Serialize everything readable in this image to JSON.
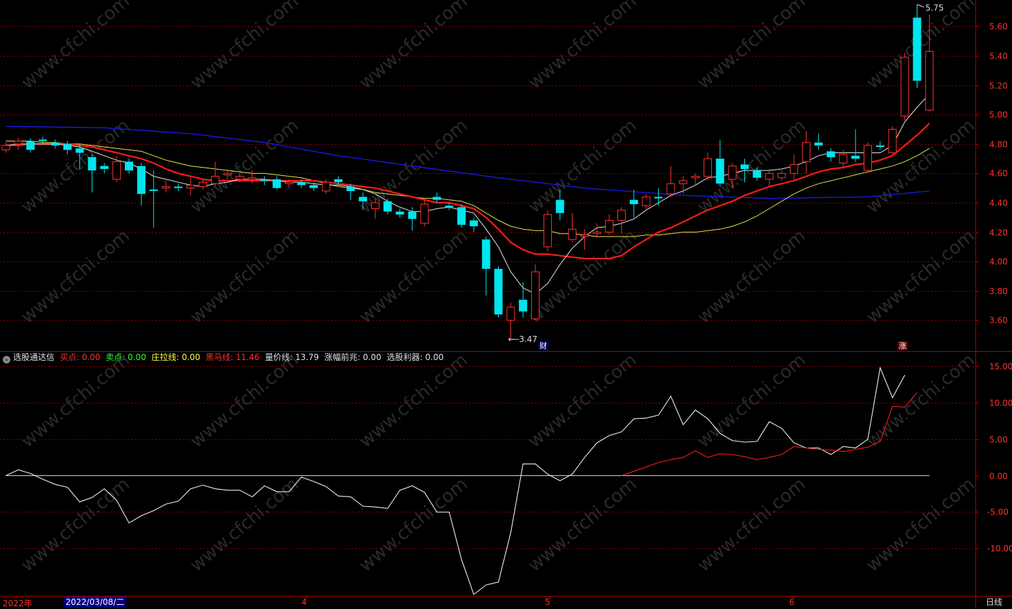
{
  "price_axis": {
    "labels": [
      "5.60",
      "5.40",
      "5.20",
      "5.00",
      "4.80",
      "4.60",
      "4.40",
      "4.20",
      "4.00",
      "3.80",
      "3.60"
    ],
    "values": [
      5.6,
      5.4,
      5.2,
      5.0,
      4.8,
      4.6,
      4.4,
      4.2,
      4.0,
      3.8,
      3.6
    ]
  },
  "indicator_axis": {
    "labels": [
      "15.00",
      "10.00",
      "5.00",
      "0.00",
      "-5.00",
      "-10.00"
    ],
    "values": [
      15,
      10,
      5,
      0,
      -5,
      -10
    ]
  },
  "annotations": {
    "high_label": "5.75",
    "low_label": "3.47",
    "tag_cai": "财",
    "tag_zhang": "涨"
  },
  "legend": {
    "name": "选股通达信",
    "items": [
      {
        "label": "买点: 0.00",
        "color": "#ff3030"
      },
      {
        "label": "卖点: 0.00",
        "color": "#30ff30"
      },
      {
        "label": "庄拉线: 0.00",
        "color": "#ffff40"
      },
      {
        "label": "黑马线: 11.46",
        "color": "#ff3030"
      },
      {
        "label": "量价线: 13.79",
        "color": "#e0e0e0"
      },
      {
        "label": "涨幅前兆: 0.00",
        "color": "#e0e0e0"
      },
      {
        "label": "选股利器: 0.00",
        "color": "#e0e0e0"
      }
    ]
  },
  "bottom_bar": {
    "year_label": "2022年",
    "selected_date": "2022/03/08/二",
    "month_4": "4",
    "month_5": "5",
    "month_6": "6",
    "period": "日线"
  },
  "watermark": "www.cfchi.com",
  "colors": {
    "up": "#ff3232",
    "down": "#00e5ee",
    "ma_white": "#e8e8e8",
    "ma_red": "#ff1a1a",
    "ma_yellow": "#e6e650",
    "ma_blue": "#1a1aee",
    "grid": "#8b0000",
    "axis_text": "#ff3232"
  },
  "chart_data": {
    "type": "candlestick",
    "ylim_price": [
      3.4,
      5.78
    ],
    "ylim_indicator": [
      -16.5,
      17
    ],
    "candles": [
      {
        "o": 4.76,
        "c": 4.79,
        "h": 4.81,
        "l": 4.74
      },
      {
        "o": 4.8,
        "c": 4.82,
        "h": 4.84,
        "l": 4.76
      },
      {
        "o": 4.82,
        "c": 4.76,
        "h": 4.84,
        "l": 4.74
      },
      {
        "o": 4.83,
        "c": 4.82,
        "h": 4.85,
        "l": 4.8
      },
      {
        "o": 4.81,
        "c": 4.79,
        "h": 4.83,
        "l": 4.77
      },
      {
        "o": 4.8,
        "c": 4.76,
        "h": 4.82,
        "l": 4.73
      },
      {
        "o": 4.77,
        "c": 4.74,
        "h": 4.8,
        "l": 4.63
      },
      {
        "o": 4.71,
        "c": 4.62,
        "h": 4.73,
        "l": 4.47
      },
      {
        "o": 4.65,
        "c": 4.63,
        "h": 4.67,
        "l": 4.6
      },
      {
        "o": 4.56,
        "c": 4.68,
        "h": 4.72,
        "l": 4.54
      },
      {
        "o": 4.68,
        "c": 4.62,
        "h": 4.7,
        "l": 4.6
      },
      {
        "o": 4.65,
        "c": 4.46,
        "h": 4.67,
        "l": 4.38
      },
      {
        "o": 4.49,
        "c": 4.48,
        "h": 4.62,
        "l": 4.23
      },
      {
        "o": 4.5,
        "c": 4.51,
        "h": 4.55,
        "l": 4.47
      },
      {
        "o": 4.51,
        "c": 4.5,
        "h": 4.53,
        "l": 4.48
      },
      {
        "o": 4.5,
        "c": 4.52,
        "h": 4.57,
        "l": 4.45
      },
      {
        "o": 4.51,
        "c": 4.54,
        "h": 4.56,
        "l": 4.49
      },
      {
        "o": 4.53,
        "c": 4.58,
        "h": 4.68,
        "l": 4.51
      },
      {
        "o": 4.59,
        "c": 4.6,
        "h": 4.63,
        "l": 4.56
      },
      {
        "o": 4.56,
        "c": 4.58,
        "h": 4.6,
        "l": 4.54
      },
      {
        "o": 4.56,
        "c": 4.57,
        "h": 4.62,
        "l": 4.53
      },
      {
        "o": 4.56,
        "c": 4.55,
        "h": 4.58,
        "l": 4.52
      },
      {
        "o": 4.56,
        "c": 4.5,
        "h": 4.58,
        "l": 4.49
      },
      {
        "o": 4.53,
        "c": 4.54,
        "h": 4.56,
        "l": 4.5
      },
      {
        "o": 4.54,
        "c": 4.52,
        "h": 4.56,
        "l": 4.5
      },
      {
        "o": 4.52,
        "c": 4.5,
        "h": 4.54,
        "l": 4.48
      },
      {
        "o": 4.48,
        "c": 4.54,
        "h": 4.56,
        "l": 4.46
      },
      {
        "o": 4.56,
        "c": 4.54,
        "h": 4.58,
        "l": 4.52
      },
      {
        "o": 4.51,
        "c": 4.48,
        "h": 4.53,
        "l": 4.42
      },
      {
        "o": 4.44,
        "c": 4.41,
        "h": 4.47,
        "l": 4.35
      },
      {
        "o": 4.36,
        "c": 4.4,
        "h": 4.43,
        "l": 4.29
      },
      {
        "o": 4.41,
        "c": 4.34,
        "h": 4.43,
        "l": 4.32
      },
      {
        "o": 4.34,
        "c": 4.32,
        "h": 4.36,
        "l": 4.3
      },
      {
        "o": 4.34,
        "c": 4.29,
        "h": 4.37,
        "l": 4.21
      },
      {
        "o": 4.26,
        "c": 4.39,
        "h": 4.42,
        "l": 4.24
      },
      {
        "o": 4.44,
        "c": 4.42,
        "h": 4.47,
        "l": 4.4
      },
      {
        "o": 4.38,
        "c": 4.37,
        "h": 4.4,
        "l": 4.35
      },
      {
        "o": 4.37,
        "c": 4.25,
        "h": 4.39,
        "l": 4.23
      },
      {
        "o": 4.28,
        "c": 4.24,
        "h": 4.3,
        "l": 4.2
      },
      {
        "o": 4.15,
        "c": 3.95,
        "h": 4.17,
        "l": 3.77
      },
      {
        "o": 3.95,
        "c": 3.64,
        "h": 3.97,
        "l": 3.62
      },
      {
        "o": 3.6,
        "c": 3.69,
        "h": 3.72,
        "l": 3.47
      },
      {
        "o": 3.74,
        "c": 3.66,
        "h": 3.86,
        "l": 3.62
      },
      {
        "o": 3.61,
        "c": 3.93,
        "h": 3.98,
        "l": 3.6
      },
      {
        "o": 4.1,
        "c": 4.32,
        "h": 4.35,
        "l": 4.07
      },
      {
        "o": 4.42,
        "c": 4.33,
        "h": 4.49,
        "l": 4.28
      },
      {
        "o": 4.15,
        "c": 4.22,
        "h": 4.33,
        "l": 4.13
      },
      {
        "o": 4.17,
        "c": 4.18,
        "h": 4.22,
        "l": 4.08
      },
      {
        "o": 4.19,
        "c": 4.2,
        "h": 4.26,
        "l": 4.16
      },
      {
        "o": 4.2,
        "c": 4.28,
        "h": 4.32,
        "l": 4.18
      },
      {
        "o": 4.28,
        "c": 4.35,
        "h": 4.37,
        "l": 4.19
      },
      {
        "o": 4.42,
        "c": 4.39,
        "h": 4.49,
        "l": 4.3
      },
      {
        "o": 4.38,
        "c": 4.44,
        "h": 4.46,
        "l": 4.35
      },
      {
        "o": 4.44,
        "c": 4.43,
        "h": 4.5,
        "l": 4.38
      },
      {
        "o": 4.46,
        "c": 4.53,
        "h": 4.65,
        "l": 4.44
      },
      {
        "o": 4.53,
        "c": 4.55,
        "h": 4.58,
        "l": 4.46
      },
      {
        "o": 4.57,
        "c": 4.58,
        "h": 4.6,
        "l": 4.52
      },
      {
        "o": 4.58,
        "c": 4.7,
        "h": 4.74,
        "l": 4.55
      },
      {
        "o": 4.7,
        "c": 4.53,
        "h": 4.83,
        "l": 4.51
      },
      {
        "o": 4.56,
        "c": 4.65,
        "h": 4.67,
        "l": 4.5
      },
      {
        "o": 4.66,
        "c": 4.63,
        "h": 4.7,
        "l": 4.54
      },
      {
        "o": 4.62,
        "c": 4.57,
        "h": 4.64,
        "l": 4.55
      },
      {
        "o": 4.56,
        "c": 4.6,
        "h": 4.63,
        "l": 4.51
      },
      {
        "o": 4.57,
        "c": 4.6,
        "h": 4.62,
        "l": 4.55
      },
      {
        "o": 4.6,
        "c": 4.66,
        "h": 4.73,
        "l": 4.56
      },
      {
        "o": 4.68,
        "c": 4.81,
        "h": 4.89,
        "l": 4.6
      },
      {
        "o": 4.81,
        "c": 4.79,
        "h": 4.87,
        "l": 4.76
      },
      {
        "o": 4.75,
        "c": 4.71,
        "h": 4.77,
        "l": 4.68
      },
      {
        "o": 4.67,
        "c": 4.73,
        "h": 4.76,
        "l": 4.63
      },
      {
        "o": 4.72,
        "c": 4.7,
        "h": 4.9,
        "l": 4.68
      },
      {
        "o": 4.62,
        "c": 4.79,
        "h": 4.81,
        "l": 4.6
      },
      {
        "o": 4.79,
        "c": 4.78,
        "h": 4.82,
        "l": 4.76
      },
      {
        "o": 4.74,
        "c": 4.9,
        "h": 4.92,
        "l": 4.73
      },
      {
        "o": 4.99,
        "c": 5.39,
        "h": 5.42,
        "l": 4.96
      },
      {
        "o": 5.66,
        "c": 5.23,
        "h": 5.75,
        "l": 5.18
      },
      {
        "o": 5.03,
        "c": 5.43,
        "h": 5.68,
        "l": 5.02
      }
    ],
    "ma_white": [
      4.79,
      4.8,
      4.8,
      4.8,
      4.8,
      4.79,
      4.78,
      4.75,
      4.72,
      4.69,
      4.67,
      4.63,
      4.58,
      4.56,
      4.54,
      4.52,
      4.51,
      4.53,
      4.54,
      4.56,
      4.56,
      4.56,
      4.55,
      4.54,
      4.54,
      4.53,
      4.52,
      4.52,
      4.51,
      4.49,
      4.46,
      4.41,
      4.37,
      4.34,
      4.34,
      4.36,
      4.37,
      4.35,
      4.33,
      4.22,
      4.1,
      3.93,
      3.82,
      3.78,
      3.85,
      3.98,
      4.09,
      4.17,
      4.23,
      4.24,
      4.26,
      4.29,
      4.35,
      4.4,
      4.45,
      4.48,
      4.52,
      4.57,
      4.58,
      4.6,
      4.62,
      4.62,
      4.62,
      4.63,
      4.65,
      4.68,
      4.72,
      4.74,
      4.74,
      4.74,
      4.74,
      4.74,
      4.79,
      4.95,
      5.05,
      5.14
    ],
    "ma_red": [
      4.79,
      4.79,
      4.8,
      4.8,
      4.8,
      4.8,
      4.79,
      4.78,
      4.76,
      4.74,
      4.72,
      4.7,
      4.67,
      4.63,
      4.6,
      4.58,
      4.56,
      4.55,
      4.55,
      4.55,
      4.55,
      4.55,
      4.55,
      4.55,
      4.55,
      4.55,
      4.54,
      4.53,
      4.52,
      4.51,
      4.5,
      4.48,
      4.46,
      4.44,
      4.42,
      4.4,
      4.4,
      4.38,
      4.36,
      4.3,
      4.22,
      4.13,
      4.08,
      4.05,
      4.05,
      4.04,
      4.03,
      4.02,
      4.02,
      4.02,
      4.04,
      4.1,
      4.15,
      4.2,
      4.23,
      4.27,
      4.31,
      4.35,
      4.38,
      4.41,
      4.45,
      4.48,
      4.51,
      4.53,
      4.55,
      4.58,
      4.61,
      4.63,
      4.64,
      4.66,
      4.67,
      4.69,
      4.72,
      4.79,
      4.86,
      4.94
    ],
    "ma_yellow": [
      4.82,
      4.82,
      4.82,
      4.81,
      4.81,
      4.8,
      4.8,
      4.79,
      4.78,
      4.77,
      4.76,
      4.75,
      4.72,
      4.69,
      4.67,
      4.65,
      4.64,
      4.63,
      4.62,
      4.61,
      4.6,
      4.6,
      4.59,
      4.58,
      4.57,
      4.55,
      4.53,
      4.51,
      4.5,
      4.49,
      4.47,
      4.46,
      4.45,
      4.44,
      4.43,
      4.43,
      4.42,
      4.41,
      4.38,
      4.33,
      4.28,
      4.24,
      4.22,
      4.21,
      4.21,
      4.19,
      4.19,
      4.18,
      4.17,
      4.17,
      4.17,
      4.17,
      4.18,
      4.18,
      4.19,
      4.2,
      4.2,
      4.21,
      4.22,
      4.24,
      4.27,
      4.31,
      4.36,
      4.41,
      4.46,
      4.5,
      4.53,
      4.55,
      4.57,
      4.59,
      4.61,
      4.63,
      4.65,
      4.68,
      4.72,
      4.77
    ],
    "ma_blue_points": [
      [
        0,
        4.92
      ],
      [
        8,
        4.91
      ],
      [
        15,
        4.87
      ],
      [
        21,
        4.81
      ],
      [
        27,
        4.72
      ],
      [
        33,
        4.65
      ],
      [
        40,
        4.57
      ],
      [
        47,
        4.5
      ],
      [
        55,
        4.45
      ],
      [
        62,
        4.43
      ],
      [
        70,
        4.44
      ],
      [
        75,
        4.48
      ]
    ],
    "indicator_white": [
      0.0,
      0.8,
      0.3,
      -0.5,
      -1.2,
      -1.6,
      -3.6,
      -3.0,
      -1.8,
      -3.4,
      -6.5,
      -5.5,
      -4.8,
      -3.9,
      -3.5,
      -1.8,
      -1.3,
      -1.8,
      -2.0,
      -2.0,
      -2.9,
      -1.4,
      -2.2,
      -2.2,
      -0.2,
      -0.8,
      -1.5,
      -2.8,
      -2.9,
      -4.2,
      -4.3,
      -4.5,
      -2.0,
      -1.4,
      -2.3,
      -5.0,
      -5.0,
      -11.5,
      -16.3,
      -15.0,
      -14.6,
      -7.8,
      1.6,
      1.6,
      0.2,
      -0.7,
      0.2,
      2.5,
      4.5,
      5.5,
      6.0,
      7.8,
      7.9,
      8.3,
      10.9,
      7.0,
      9.0,
      7.8,
      5.8,
      4.8,
      4.6,
      4.7,
      7.4,
      6.5,
      4.5,
      3.8,
      3.8,
      2.9,
      4.0,
      3.8,
      5.0,
      14.8,
      10.7,
      13.8
    ],
    "indicator_red": [
      [
        50,
        0.0
      ],
      [
        51,
        0.6
      ],
      [
        52,
        1.2
      ],
      [
        53,
        1.8
      ],
      [
        54,
        2.2
      ],
      [
        55,
        2.5
      ],
      [
        56,
        3.4
      ],
      [
        57,
        2.5
      ],
      [
        58,
        3.0
      ],
      [
        59,
        2.9
      ],
      [
        60,
        2.6
      ],
      [
        61,
        2.2
      ],
      [
        62,
        2.5
      ],
      [
        63,
        2.9
      ],
      [
        64,
        4.0
      ],
      [
        65,
        3.8
      ],
      [
        66,
        3.6
      ],
      [
        67,
        3.5
      ],
      [
        68,
        3.3
      ],
      [
        69,
        3.6
      ],
      [
        70,
        3.9
      ],
      [
        71,
        4.7
      ],
      [
        72,
        9.5
      ],
      [
        73,
        9.4
      ],
      [
        74,
        11.4
      ]
    ],
    "zero_line": 0
  }
}
